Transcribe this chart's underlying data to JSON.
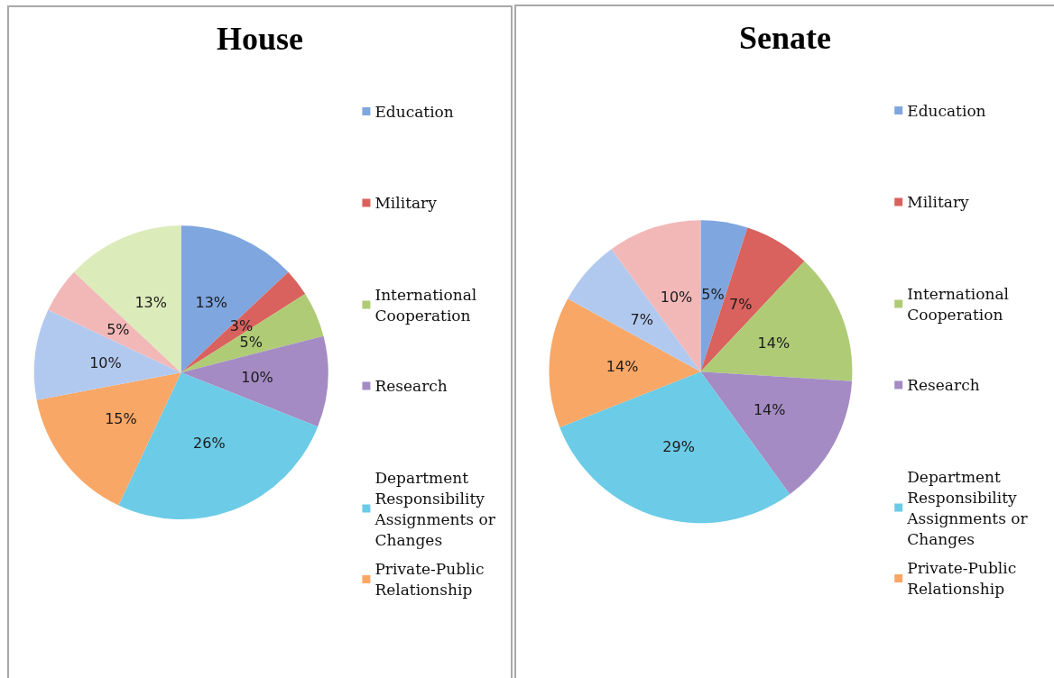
{
  "chart_data": [
    {
      "type": "pie",
      "title": "House",
      "categories": [
        "Education",
        "Military",
        "International Cooperation",
        "Research",
        "Department Responsibility Assignments or Changes",
        "Private-Public Relationship",
        null,
        null,
        null
      ],
      "values": [
        13,
        3,
        5,
        10,
        26,
        15,
        10,
        5,
        13
      ],
      "value_labels": [
        "13%",
        "3%",
        "5%",
        "10%",
        "26%",
        "15%",
        "10%",
        "5%",
        "13%"
      ],
      "colors": [
        "#7fa6df",
        "#d9625e",
        "#afcb76",
        "#a48bc4",
        "#6ccbe6",
        "#f8a766",
        "#b2c9ef",
        "#f2b8b8",
        "#dcebba"
      ],
      "legend": "right"
    },
    {
      "type": "pie",
      "title": "Senate",
      "categories": [
        "Education",
        "Military",
        "International Cooperation",
        "Research",
        "Department Responsibility Assignments or Changes",
        "Private-Public Relationship",
        null,
        null
      ],
      "values": [
        5,
        7,
        14,
        14,
        29,
        14,
        7,
        10
      ],
      "value_labels": [
        "5%",
        "7%",
        "14%",
        "14%",
        "29%",
        "14%",
        "7%",
        "10%"
      ],
      "colors": [
        "#7fa6df",
        "#d9625e",
        "#afcb76",
        "#a48bc4",
        "#6ccbe6",
        "#f8a766",
        "#b2c9ef",
        "#f2b8b8"
      ],
      "legend": "right"
    }
  ]
}
